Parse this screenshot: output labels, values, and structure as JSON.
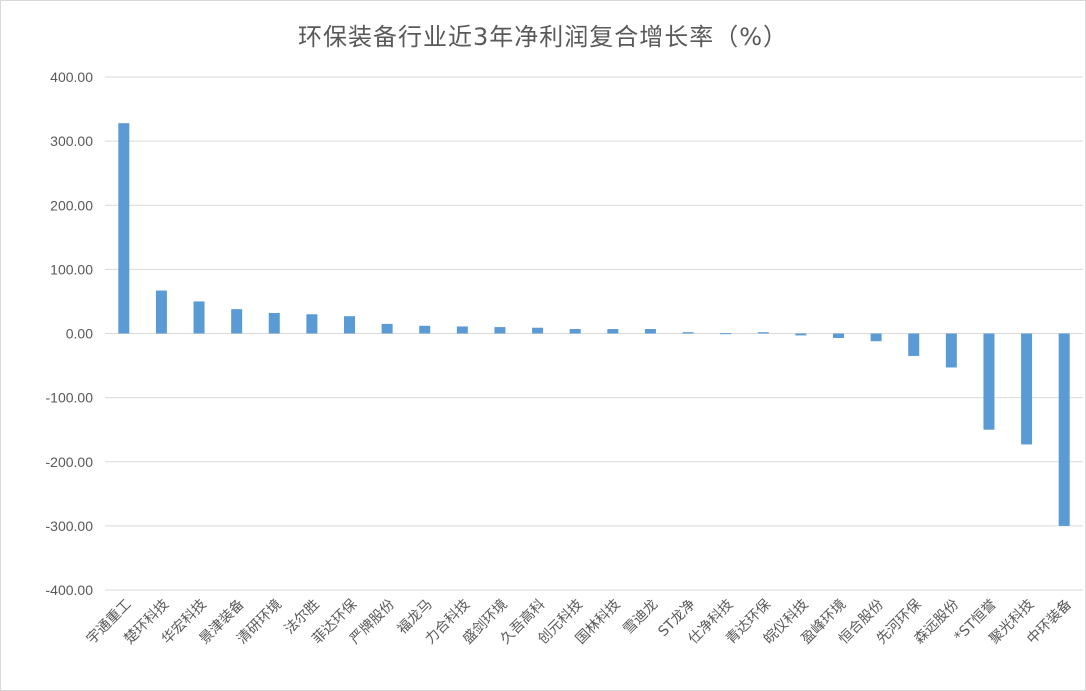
{
  "chart_data": {
    "type": "bar",
    "title": "环保装备行业近3年净利润复合增长率（%）",
    "xlabel": "",
    "ylabel": "",
    "ylim": [
      -400,
      400
    ],
    "yticks": [
      400,
      300,
      200,
      100,
      0,
      -100,
      -200,
      -300,
      -400
    ],
    "ytick_labels": [
      "400.00",
      "300.00",
      "200.00",
      "100.00",
      "0.00",
      "-100.00",
      "-200.00",
      "-300.00",
      "-400.00"
    ],
    "grid": true,
    "legend": "none",
    "bar_color": "#5b9bd5",
    "categories": [
      "宇通重工",
      "楚环科技",
      "华宏科技",
      "景津装备",
      "清研环境",
      "法尔胜",
      "菲达环保",
      "严牌股份",
      "福龙马",
      "力合科技",
      "盛剑环境",
      "久吾高科",
      "创元科技",
      "国林科技",
      "雪迪龙",
      "ST龙净",
      "仕净科技",
      "青达环保",
      "皖仪科技",
      "盈峰环境",
      "恒合股份",
      "先河环保",
      "森远股份",
      "*ST恒誉",
      "聚光科技",
      "中环装备"
    ],
    "values": [
      328,
      67,
      50,
      38,
      32,
      30,
      27,
      15,
      12,
      11,
      10,
      9,
      7,
      7,
      7,
      2,
      0.5,
      2,
      -3,
      -7,
      -12,
      -35,
      -53,
      -150,
      -173,
      -300
    ]
  }
}
